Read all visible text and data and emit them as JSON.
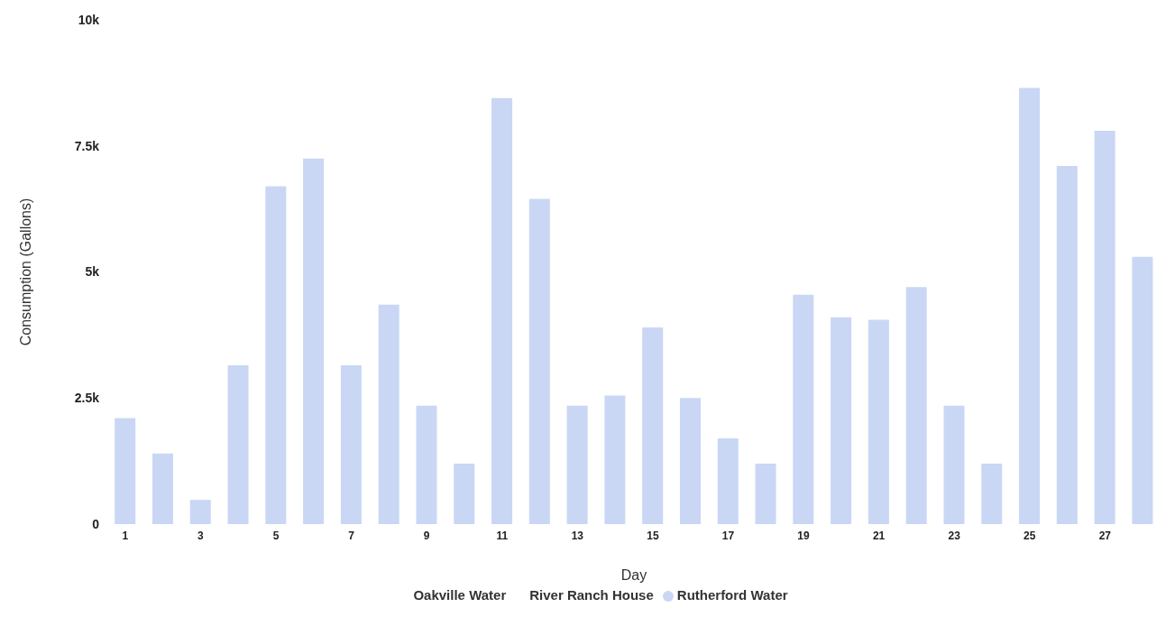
{
  "chart_data": {
    "type": "bar",
    "xlabel": "Day",
    "ylabel": "Consumption (Gallons)",
    "categories": [
      "1",
      null,
      "3",
      null,
      "5",
      null,
      "7",
      null,
      "9",
      null,
      "11",
      null,
      "13",
      null,
      "15",
      null,
      "17",
      null,
      "19",
      null,
      "21",
      null,
      "23",
      null,
      "25",
      null,
      "27",
      null
    ],
    "series": [
      {
        "name": "Oakville Water",
        "values": [
          null,
          null,
          null,
          null,
          null,
          null,
          null,
          null,
          null,
          null,
          null,
          null,
          null,
          null,
          null,
          null,
          null,
          null,
          null,
          null,
          null,
          null,
          null,
          null,
          null,
          null,
          null,
          null
        ]
      },
      {
        "name": "River Ranch House",
        "values": [
          null,
          null,
          null,
          null,
          null,
          null,
          null,
          null,
          null,
          null,
          null,
          null,
          null,
          null,
          null,
          null,
          null,
          null,
          null,
          null,
          null,
          null,
          null,
          null,
          null,
          null,
          null,
          null
        ]
      },
      {
        "name": "Rutherford Water",
        "color": "#c9d7f5",
        "values": [
          2100,
          1400,
          480,
          3150,
          6700,
          7250,
          3150,
          4350,
          2350,
          1200,
          8450,
          6450,
          2350,
          2550,
          3900,
          2500,
          1700,
          1200,
          4550,
          4100,
          4050,
          4700,
          2350,
          1200,
          8650,
          7100,
          7800,
          5300
        ]
      }
    ],
    "ylim": [
      0,
      10000
    ],
    "yticks": [
      {
        "value": 0,
        "label": "0"
      },
      {
        "value": 2500,
        "label": "2.5k"
      },
      {
        "value": 5000,
        "label": "5k"
      },
      {
        "value": 7500,
        "label": "7.5k"
      },
      {
        "value": 10000,
        "label": "10k"
      }
    ],
    "grid": false,
    "legend": "bottom"
  }
}
